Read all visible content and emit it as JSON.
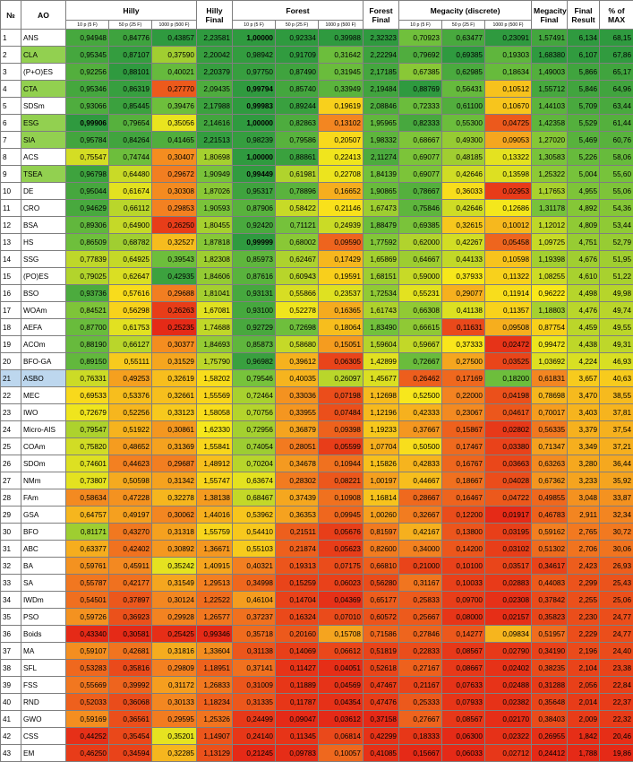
{
  "header": {
    "num": "№",
    "ao": "AO",
    "hilly": "Hilly",
    "hilly_final": "Hilly Final",
    "forest": "Forest",
    "forest_final": "Forest Final",
    "megacity": "Megacity (discrete)",
    "megacity_final": "Megacity Final",
    "final_result": "Final Result",
    "pct_max": "% of MAX",
    "sub": [
      "10 p (5 F)",
      "50 p (25 F)",
      "1000 p (500 F)",
      "10 p (5 F)",
      "50 p (25 F)",
      "1000 p (500 F)",
      "10 p (5 F)",
      "50 p (25 F)",
      "1000 p (500 F)"
    ]
  },
  "rows": [
    {
      "num": "1",
      "ao": "ANS",
      "h1": "0,94948",
      "h2": "0,84776",
      "h3": "0,43857",
      "hf": "2,23581",
      "f1": "1,00000",
      "f2": "0,92334",
      "f3": "0,39988",
      "ff": "2,32323",
      "m1": "0,70923",
      "m2": "0,63477",
      "m3": "0,23091",
      "mf": "1,57491",
      "fr": "6,134",
      "pm": "68,15"
    },
    {
      "num": "2",
      "ao": "CLA",
      "h1": "0,95345",
      "h2": "0,87107",
      "h3": "0,37590",
      "hf": "2,20042",
      "f1": "0,98942",
      "f2": "0,91709",
      "f3": "0,31642",
      "ff": "2,22294",
      "m1": "0,79692",
      "m2": "0,69385",
      "m3": "0,19303",
      "mf": "1,68380",
      "fr": "6,107",
      "pm": "67,86"
    },
    {
      "num": "3",
      "ao": "(P+O)ES",
      "h1": "0,92256",
      "h2": "0,88101",
      "h3": "0,40021",
      "hf": "2,20379",
      "f1": "0,97750",
      "f2": "0,87490",
      "f3": "0,31945",
      "ff": "2,17185",
      "m1": "0,67385",
      "m2": "0,62985",
      "m3": "0,18634",
      "mf": "1,49003",
      "fr": "5,866",
      "pm": "65,17"
    },
    {
      "num": "4",
      "ao": "CTA",
      "h1": "0,95346",
      "h2": "0,86319",
      "h3": "0,27770",
      "hf": "2,09435",
      "f1": "0,99794",
      "f2": "0,85740",
      "f3": "0,33949",
      "ff": "2,19484",
      "m1": "0,88769",
      "m2": "0,56431",
      "m3": "0,10512",
      "mf": "1,55712",
      "fr": "5,846",
      "pm": "64,96"
    },
    {
      "num": "5",
      "ao": "SDSm",
      "h1": "0,93066",
      "h2": "0,85445",
      "h3": "0,39476",
      "hf": "2,17988",
      "f1": "0,99983",
      "f2": "0,89244",
      "f3": "0,19619",
      "ff": "2,08846",
      "m1": "0,72333",
      "m2": "0,61100",
      "m3": "0,10670",
      "mf": "1,44103",
      "fr": "5,709",
      "pm": "63,44"
    },
    {
      "num": "6",
      "ao": "ESG",
      "h1": "0,99906",
      "h2": "0,79654",
      "h3": "0,35056",
      "hf": "2,14616",
      "f1": "1,00000",
      "f2": "0,82863",
      "f3": "0,13102",
      "ff": "1,95965",
      "m1": "0,82333",
      "m2": "0,55300",
      "m3": "0,04725",
      "mf": "1,42358",
      "fr": "5,529",
      "pm": "61,44"
    },
    {
      "num": "7",
      "ao": "SIA",
      "h1": "0,95784",
      "h2": "0,84264",
      "h3": "0,41465",
      "hf": "2,21513",
      "f1": "0,98239",
      "f2": "0,79586",
      "f3": "0,20507",
      "ff": "1,98332",
      "m1": "0,68667",
      "m2": "0,49300",
      "m3": "0,09053",
      "mf": "1,27020",
      "fr": "5,469",
      "pm": "60,76"
    },
    {
      "num": "8",
      "ao": "ACS",
      "h1": "0,75547",
      "h2": "0,74744",
      "h3": "0,30407",
      "hf": "1,80698",
      "f1": "1,00000",
      "f2": "0,88861",
      "f3": "0,22413",
      "ff": "2,11274",
      "m1": "0,69077",
      "m2": "0,48185",
      "m3": "0,13322",
      "mf": "1,30583",
      "fr": "5,226",
      "pm": "58,06"
    },
    {
      "num": "9",
      "ao": "TSEA",
      "h1": "0,96798",
      "h2": "0,64480",
      "h3": "0,29672",
      "hf": "1,90949",
      "f1": "0,99449",
      "f2": "0,61981",
      "f3": "0,22708",
      "ff": "1,84139",
      "m1": "0,69077",
      "m2": "0,42646",
      "m3": "0,13598",
      "mf": "1,25322",
      "fr": "5,004",
      "pm": "55,60"
    },
    {
      "num": "10",
      "ao": "DE",
      "h1": "0,95044",
      "h2": "0,61674",
      "h3": "0,30308",
      "hf": "1,87026",
      "f1": "0,95317",
      "f2": "0,78896",
      "f3": "0,16652",
      "ff": "1,90865",
      "m1": "0,78667",
      "m2": "0,36033",
      "m3": "0,02953",
      "mf": "1,17653",
      "fr": "4,955",
      "pm": "55,06"
    },
    {
      "num": "11",
      "ao": "CRO",
      "h1": "0,94629",
      "h2": "0,66112",
      "h3": "0,29853",
      "hf": "1,90593",
      "f1": "0,87906",
      "f2": "0,58422",
      "f3": "0,21146",
      "ff": "1,67473",
      "m1": "0,75846",
      "m2": "0,42646",
      "m3": "0,12686",
      "mf": "1,31178",
      "fr": "4,892",
      "pm": "54,36"
    },
    {
      "num": "12",
      "ao": "BSA",
      "h1": "0,89306",
      "h2": "0,64900",
      "h3": "0,26250",
      "hf": "1,80455",
      "f1": "0,92420",
      "f2": "0,71121",
      "f3": "0,24939",
      "ff": "1,88479",
      "m1": "0,69385",
      "m2": "0,32615",
      "m3": "0,10012",
      "mf": "1,12012",
      "fr": "4,809",
      "pm": "53,44"
    },
    {
      "num": "13",
      "ao": "HS",
      "h1": "0,86509",
      "h2": "0,68782",
      "h3": "0,32527",
      "hf": "1,87818",
      "f1": "0,99999",
      "f2": "0,68002",
      "f3": "0,09590",
      "ff": "1,77592",
      "m1": "0,62000",
      "m2": "0,42267",
      "m3": "0,05458",
      "mf": "1,09725",
      "fr": "4,751",
      "pm": "52,79"
    },
    {
      "num": "14",
      "ao": "SSG",
      "h1": "0,77839",
      "h2": "0,64925",
      "h3": "0,39543",
      "hf": "1,82308",
      "f1": "0,85973",
      "f2": "0,62467",
      "f3": "0,17429",
      "ff": "1,65869",
      "m1": "0,64667",
      "m2": "0,44133",
      "m3": "0,10598",
      "mf": "1,19398",
      "fr": "4,676",
      "pm": "51,95"
    },
    {
      "num": "15",
      "ao": "(PO)ES",
      "h1": "0,79025",
      "h2": "0,62647",
      "h3": "0,42935",
      "hf": "1,84606",
      "f1": "0,87616",
      "f2": "0,60943",
      "f3": "0,19591",
      "ff": "1,68151",
      "m1": "0,59000",
      "m2": "0,37933",
      "m3": "0,11322",
      "mf": "1,08255",
      "fr": "4,610",
      "pm": "51,22"
    },
    {
      "num": "16",
      "ao": "BSO",
      "h1": "0,93736",
      "h2": "0,57616",
      "h3": "0,29688",
      "hf": "1,81041",
      "f1": "0,93131",
      "f2": "0,55866",
      "f3": "0,23537",
      "ff": "1,72534",
      "m1": "0,55231",
      "m2": "0,29077",
      "m3": "0,11914",
      "mf": "0,96222",
      "fr": "4,498",
      "pm": "49,98"
    },
    {
      "num": "17",
      "ao": "WOAm",
      "h1": "0,84521",
      "h2": "0,56298",
      "h3": "0,26263",
      "hf": "1,67081",
      "f1": "0,93100",
      "f2": "0,52278",
      "f3": "0,16365",
      "ff": "1,61743",
      "m1": "0,66308",
      "m2": "0,41138",
      "m3": "0,11357",
      "mf": "1,18803",
      "fr": "4,476",
      "pm": "49,74"
    },
    {
      "num": "18",
      "ao": "AEFA",
      "h1": "0,87700",
      "h2": "0,61753",
      "h3": "0,25235",
      "hf": "1,74688",
      "f1": "0,92729",
      "f2": "0,72698",
      "f3": "0,18064",
      "ff": "1,83490",
      "m1": "0,66615",
      "m2": "0,11631",
      "m3": "0,09508",
      "mf": "0,87754",
      "fr": "4,459",
      "pm": "49,55"
    },
    {
      "num": "19",
      "ao": "ACOm",
      "h1": "0,88190",
      "h2": "0,66127",
      "h3": "0,30377",
      "hf": "1,84693",
      "f1": "0,85873",
      "f2": "0,58680",
      "f3": "0,15051",
      "ff": "1,59604",
      "m1": "0,59667",
      "m2": "0,37333",
      "m3": "0,02472",
      "mf": "0,99472",
      "fr": "4,438",
      "pm": "49,31"
    },
    {
      "num": "20",
      "ao": "BFO-GA",
      "h1": "0,89150",
      "h2": "0,55111",
      "h3": "0,31529",
      "hf": "1,75790",
      "f1": "0,96982",
      "f2": "0,39612",
      "f3": "0,06305",
      "ff": "1,42899",
      "m1": "0,72667",
      "m2": "0,27500",
      "m3": "0,03525",
      "mf": "1,03692",
      "fr": "4,224",
      "pm": "46,93"
    },
    {
      "num": "21",
      "ao": "ASBO",
      "h1": "0,76331",
      "h2": "0,49253",
      "h3": "0,32619",
      "hf": "1,58202",
      "f1": "0,79546",
      "f2": "0,40035",
      "f3": "0,26097",
      "ff": "1,45677",
      "m1": "0,26462",
      "m2": "0,17169",
      "m3": "0,18200",
      "mf": "0,61831",
      "fr": "3,657",
      "pm": "40,63"
    },
    {
      "num": "22",
      "ao": "MEC",
      "h1": "0,69533",
      "h2": "0,53376",
      "h3": "0,32661",
      "hf": "1,55569",
      "f1": "0,72464",
      "f2": "0,33036",
      "f3": "0,07198",
      "ff": "1,12698",
      "m1": "0,52500",
      "m2": "0,22000",
      "m3": "0,04198",
      "mf": "0,78698",
      "fr": "3,470",
      "pm": "38,55"
    },
    {
      "num": "23",
      "ao": "IWO",
      "h1": "0,72679",
      "h2": "0,52256",
      "h3": "0,33123",
      "hf": "1,58058",
      "f1": "0,70756",
      "f2": "0,33955",
      "f3": "0,07484",
      "ff": "1,12196",
      "m1": "0,42333",
      "m2": "0,23067",
      "m3": "0,04617",
      "mf": "0,70017",
      "fr": "3,403",
      "pm": "37,81"
    },
    {
      "num": "24",
      "ao": "Micro-AIS",
      "h1": "0,79547",
      "h2": "0,51922",
      "h3": "0,30861",
      "hf": "1,62330",
      "f1": "0,72956",
      "f2": "0,36879",
      "f3": "0,09398",
      "ff": "1,19233",
      "m1": "0,37667",
      "m2": "0,15867",
      "m3": "0,02802",
      "mf": "0,56335",
      "fr": "3,379",
      "pm": "37,54"
    },
    {
      "num": "25",
      "ao": "COAm",
      "h1": "0,75820",
      "h2": "0,48652",
      "h3": "0,31369",
      "hf": "1,55841",
      "f1": "0,74054",
      "f2": "0,28051",
      "f3": "0,05599",
      "ff": "1,07704",
      "m1": "0,50500",
      "m2": "0,17467",
      "m3": "0,03380",
      "mf": "0,71347",
      "fr": "3,349",
      "pm": "37,21"
    },
    {
      "num": "26",
      "ao": "SDOm",
      "h1": "0,74601",
      "h2": "0,44623",
      "h3": "0,29687",
      "hf": "1,48912",
      "f1": "0,70204",
      "f2": "0,34678",
      "f3": "0,10944",
      "ff": "1,15826",
      "m1": "0,42833",
      "m2": "0,16767",
      "m3": "0,03663",
      "mf": "0,63263",
      "fr": "3,280",
      "pm": "36,44"
    },
    {
      "num": "27",
      "ao": "NMm",
      "h1": "0,73807",
      "h2": "0,50598",
      "h3": "0,31342",
      "hf": "1,55747",
      "f1": "0,63674",
      "f2": "0,28302",
      "f3": "0,08221",
      "ff": "1,00197",
      "m1": "0,44667",
      "m2": "0,18667",
      "m3": "0,04028",
      "mf": "0,67362",
      "fr": "3,233",
      "pm": "35,92"
    },
    {
      "num": "28",
      "ao": "FAm",
      "h1": "0,58634",
      "h2": "0,47228",
      "h3": "0,32278",
      "hf": "1,38138",
      "f1": "0,68467",
      "f2": "0,37439",
      "f3": "0,10908",
      "ff": "1,16814",
      "m1": "0,28667",
      "m2": "0,16467",
      "m3": "0,04722",
      "mf": "0,49855",
      "fr": "3,048",
      "pm": "33,87"
    },
    {
      "num": "29",
      "ao": "GSA",
      "h1": "0,64757",
      "h2": "0,49197",
      "h3": "0,30062",
      "hf": "1,44016",
      "f1": "0,53962",
      "f2": "0,36353",
      "f3": "0,09945",
      "ff": "1,00260",
      "m1": "0,32667",
      "m2": "0,12200",
      "m3": "0,01917",
      "mf": "0,46783",
      "fr": "2,911",
      "pm": "32,34"
    },
    {
      "num": "30",
      "ao": "BFO",
      "h1": "0,81171",
      "h2": "0,43270",
      "h3": "0,31318",
      "hf": "1,55759",
      "f1": "0,54410",
      "f2": "0,21511",
      "f3": "0,05676",
      "ff": "0,81597",
      "m1": "0,42167",
      "m2": "0,13800",
      "m3": "0,03195",
      "mf": "0,59162",
      "fr": "2,765",
      "pm": "30,72"
    },
    {
      "num": "31",
      "ao": "ABC",
      "h1": "0,63377",
      "h2": "0,42402",
      "h3": "0,30892",
      "hf": "1,36671",
      "f1": "0,55103",
      "f2": "0,21874",
      "f3": "0,05623",
      "ff": "0,82600",
      "m1": "0,34000",
      "m2": "0,14200",
      "m3": "0,03102",
      "mf": "0,51302",
      "fr": "2,706",
      "pm": "30,06"
    },
    {
      "num": "32",
      "ao": "BA",
      "h1": "0,59761",
      "h2": "0,45911",
      "h3": "0,35242",
      "hf": "1,40915",
      "f1": "0,40321",
      "f2": "0,19313",
      "f3": "0,07175",
      "ff": "0,66810",
      "m1": "0,21000",
      "m2": "0,10100",
      "m3": "0,03517",
      "mf": "0,34617",
      "fr": "2,423",
      "pm": "26,93"
    },
    {
      "num": "33",
      "ao": "SA",
      "h1": "0,55787",
      "h2": "0,42177",
      "h3": "0,31549",
      "hf": "1,29513",
      "f1": "0,34998",
      "f2": "0,15259",
      "f3": "0,06023",
      "ff": "0,56280",
      "m1": "0,31167",
      "m2": "0,10033",
      "m3": "0,02883",
      "mf": "0,44083",
      "fr": "2,299",
      "pm": "25,43"
    },
    {
      "num": "34",
      "ao": "IWDm",
      "h1": "0,54501",
      "h2": "0,37897",
      "h3": "0,30124",
      "hf": "1,22522",
      "f1": "0,46104",
      "f2": "0,14704",
      "f3": "0,04369",
      "ff": "0,65177",
      "m1": "0,25833",
      "m2": "0,09700",
      "m3": "0,02308",
      "mf": "0,37842",
      "fr": "2,255",
      "pm": "25,06"
    },
    {
      "num": "35",
      "ao": "PSO",
      "h1": "0,59726",
      "h2": "0,36923",
      "h3": "0,29928",
      "hf": "1,26577",
      "f1": "0,37237",
      "f2": "0,16324",
      "f3": "0,07010",
      "ff": "0,60572",
      "m1": "0,25667",
      "m2": "0,08000",
      "m3": "0,02157",
      "mf": "0,35823",
      "fr": "2,230",
      "pm": "24,77"
    },
    {
      "num": "36",
      "ao": "Boids",
      "h1": "0,43340",
      "h2": "0,30581",
      "h3": "0,25425",
      "hf": "0,99346",
      "f1": "0,35718",
      "f2": "0,20160",
      "f3": "0,15708",
      "ff": "0,71586",
      "m1": "0,27846",
      "m2": "0,14277",
      "m3": "0,09834",
      "mf": "0,51957",
      "fr": "2,229",
      "pm": "24,77"
    },
    {
      "num": "37",
      "ao": "MA",
      "h1": "0,59107",
      "h2": "0,42681",
      "h3": "0,31816",
      "hf": "1,33604",
      "f1": "0,31138",
      "f2": "0,14069",
      "f3": "0,06612",
      "ff": "0,51819",
      "m1": "0,22833",
      "m2": "0,08567",
      "m3": "0,02790",
      "mf": "0,34190",
      "fr": "2,196",
      "pm": "24,40"
    },
    {
      "num": "38",
      "ao": "SFL",
      "h1": "0,53283",
      "h2": "0,35816",
      "h3": "0,29809",
      "hf": "1,18951",
      "f1": "0,37141",
      "f2": "0,11427",
      "f3": "0,04051",
      "ff": "0,52618",
      "m1": "0,27167",
      "m2": "0,08667",
      "m3": "0,02402",
      "mf": "0,38235",
      "fr": "2,104",
      "pm": "23,38"
    },
    {
      "num": "39",
      "ao": "FSS",
      "h1": "0,55669",
      "h2": "0,39992",
      "h3": "0,31172",
      "hf": "1,26833",
      "f1": "0,31009",
      "f2": "0,11889",
      "f3": "0,04569",
      "ff": "0,47467",
      "m1": "0,21167",
      "m2": "0,07633",
      "m3": "0,02488",
      "mf": "0,31288",
      "fr": "2,056",
      "pm": "22,84"
    },
    {
      "num": "40",
      "ao": "RND",
      "h1": "0,52033",
      "h2": "0,36068",
      "h3": "0,30133",
      "hf": "1,18234",
      "f1": "0,31335",
      "f2": "0,11787",
      "f3": "0,04354",
      "ff": "0,47476",
      "m1": "0,25333",
      "m2": "0,07933",
      "m3": "0,02382",
      "mf": "0,35648",
      "fr": "2,014",
      "pm": "22,37"
    },
    {
      "num": "41",
      "ao": "GWO",
      "h1": "0,59169",
      "h2": "0,36561",
      "h3": "0,29595",
      "hf": "1,25326",
      "f1": "0,24499",
      "f2": "0,09047",
      "f3": "0,03612",
      "ff": "0,37158",
      "m1": "0,27667",
      "m2": "0,08567",
      "m3": "0,02170",
      "mf": "0,38403",
      "fr": "2,009",
      "pm": "22,32"
    },
    {
      "num": "42",
      "ao": "CSS",
      "h1": "0,44252",
      "h2": "0,35454",
      "h3": "0,35201",
      "hf": "1,14907",
      "f1": "0,24140",
      "f2": "0,11345",
      "f3": "0,06814",
      "ff": "0,42299",
      "m1": "0,18333",
      "m2": "0,06300",
      "m3": "0,02322",
      "mf": "0,26955",
      "fr": "1,842",
      "pm": "20,46"
    },
    {
      "num": "43",
      "ao": "EM",
      "h1": "0,46250",
      "h2": "0,34594",
      "h3": "0,32285",
      "hf": "1,13129",
      "f1": "0,21245",
      "f2": "0,09783",
      "f3": "0,10057",
      "ff": "0,41085",
      "m1": "0,15667",
      "m2": "0,06033",
      "m3": "0,02712",
      "mf": "0,24412",
      "fr": "1,788",
      "pm": "19,86"
    }
  ],
  "colors": {
    "scale_red": "#e52a17",
    "scale_orange": "#f38221",
    "scale_yellow": "#f9e81b",
    "scale_green": "#72c13c",
    "scale_dark_green": "#2f9a3f",
    "ao_highlight": "#92d050",
    "ao_selected": "#bdd7ee"
  }
}
